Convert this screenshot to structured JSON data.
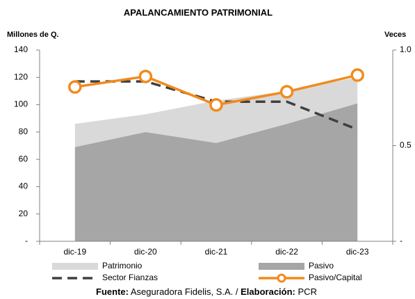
{
  "chart_data": {
    "type": "combo",
    "title": "APALANCAMIENTO PATRIMONIAL",
    "ylabel": "Millones de Q.",
    "y2label": "Veces",
    "categories": [
      "dic-19",
      "dic-20",
      "dic-21",
      "dic-22",
      "dic-23"
    ],
    "ylim": [
      0,
      140
    ],
    "yticks": [
      {
        "value": 0,
        "label": "-"
      },
      20,
      40,
      60,
      80,
      100,
      120,
      140
    ],
    "y2lim": [
      0,
      1
    ],
    "y2ticks": [
      {
        "value": 0,
        "label": "-"
      },
      0.5,
      {
        "value": 1,
        "label": "1.0"
      }
    ],
    "stacked": true,
    "series": [
      {
        "name": "Pasivo",
        "type": "area",
        "color": "#a6a6a6",
        "values": [
          69,
          80,
          72,
          86,
          101
        ]
      },
      {
        "name": "Patrimonio",
        "type": "area",
        "color": "#d9d9d9",
        "values": [
          17,
          13,
          31,
          24,
          19
        ]
      },
      {
        "name": "Sector Fianzas",
        "type": "line",
        "axis": "y2",
        "style": "dashed",
        "color": "#404040",
        "values": [
          0.836,
          0.836,
          0.73,
          0.73,
          0.585
        ]
      },
      {
        "name": "Pasivo/Capital",
        "type": "line",
        "axis": "y2",
        "marker": true,
        "color": "#f28a1c",
        "values": [
          0.807,
          0.862,
          0.713,
          0.782,
          0.869
        ]
      }
    ],
    "source": {
      "label": "Fuente:",
      "text": "Aseguradora Fidelis, S.A. /",
      "credit_label": "Elaboración:",
      "credit": "PCR"
    }
  }
}
